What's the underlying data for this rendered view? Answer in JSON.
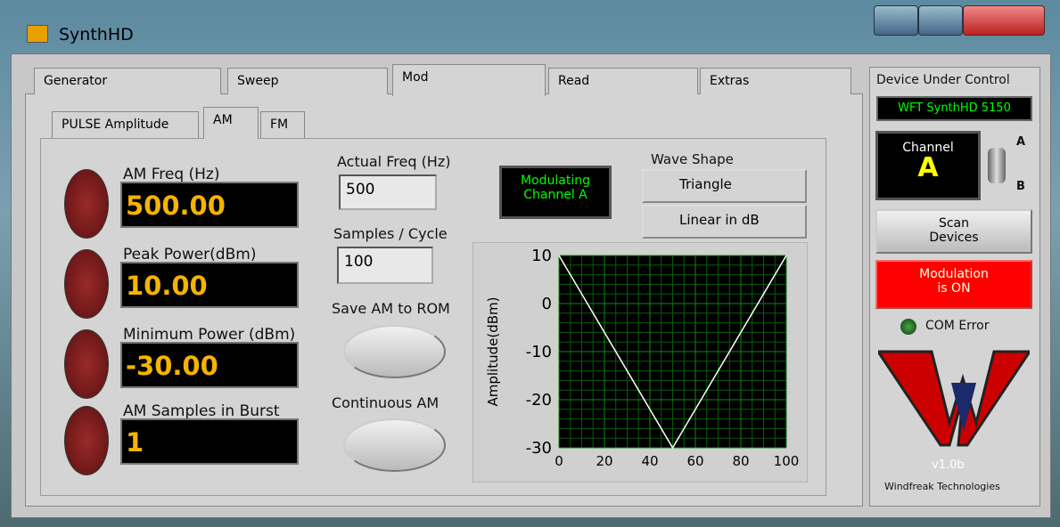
{
  "window": {
    "title": "SynthHD"
  },
  "tabs": [
    "Generator",
    "Sweep",
    "Mod",
    "Read",
    "Extras"
  ],
  "sub_tabs": [
    "PULSE Amplitude",
    "AM",
    "FM"
  ],
  "controls": [
    {
      "label": "AM Freq (Hz)",
      "value": "500.00"
    },
    {
      "label": "Peak Power(dBm)",
      "value": "10.00"
    },
    {
      "label": "Minimum Power (dBm)",
      "value": "-30.00"
    },
    {
      "label": "AM Samples in Burst",
      "value": "1"
    }
  ],
  "actual_freq": {
    "label": "Actual Freq (Hz)",
    "value": "500"
  },
  "samples_per_cycle": {
    "label": "Samples / Cycle",
    "value": "100"
  },
  "save_am": "Save AM to ROM",
  "continuous_am": "Continuous AM",
  "status": [
    "Modulating",
    "Channel A"
  ],
  "wave_shape": {
    "label": "Wave Shape",
    "options": [
      "Triangle",
      "Linear in dB"
    ]
  },
  "chart_data": {
    "type": "line",
    "y_label": "Amplitude(dBm)",
    "x": [
      0,
      50,
      100
    ],
    "values": [
      10,
      -30,
      10
    ],
    "xlim": [
      0,
      100
    ],
    "ylim": [
      -30,
      10
    ],
    "xticks": [
      0,
      20,
      40,
      60,
      80,
      100
    ],
    "yticks": [
      10,
      0,
      -10,
      -20,
      -30
    ],
    "grid": true,
    "color": "#ffffff"
  },
  "device": {
    "label": "Device Under Control",
    "name": "WFT SynthHD 5150"
  },
  "channel": {
    "label": "Channel",
    "value": "A",
    "switch": [
      "A",
      "B"
    ]
  },
  "scan_button": [
    "Scan",
    "Devices"
  ],
  "modulation": [
    "Modulation",
    "is ON"
  ],
  "com_error": "COM Error",
  "version": "v1.0b",
  "company": "Windfreak Technologies"
}
